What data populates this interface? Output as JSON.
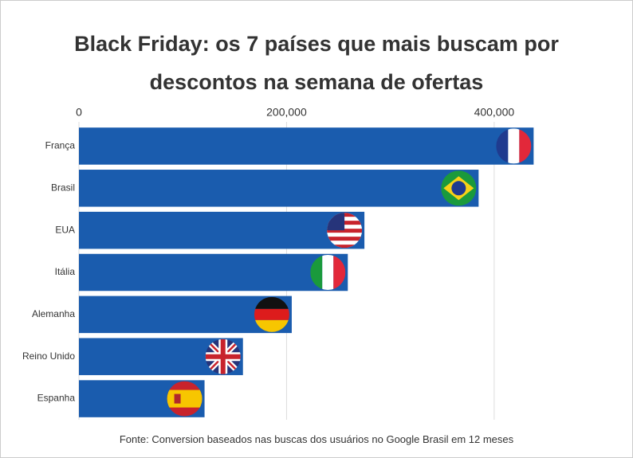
{
  "chart_data": {
    "type": "bar",
    "orientation": "horizontal",
    "title": "Black Friday: os 7 países que mais buscam por descontos na semana de ofertas",
    "source": "Fonte: Conversion baseados nas buscas dos usuários no Google Brasil em 12 meses",
    "categories": [
      "França",
      "Brasil",
      "EUA",
      "Itália",
      "Alemanha",
      "Reino Unido",
      "Espanha"
    ],
    "values": [
      438000,
      385000,
      275000,
      259000,
      205000,
      158000,
      121000
    ],
    "color": "#1a5cae",
    "xlim": [
      0,
      460000
    ],
    "xticks": [
      0,
      {
        "value": 200000,
        "label": "200,000"
      },
      {
        "value": 400000,
        "label": "400,000"
      }
    ],
    "grid": true
  }
}
